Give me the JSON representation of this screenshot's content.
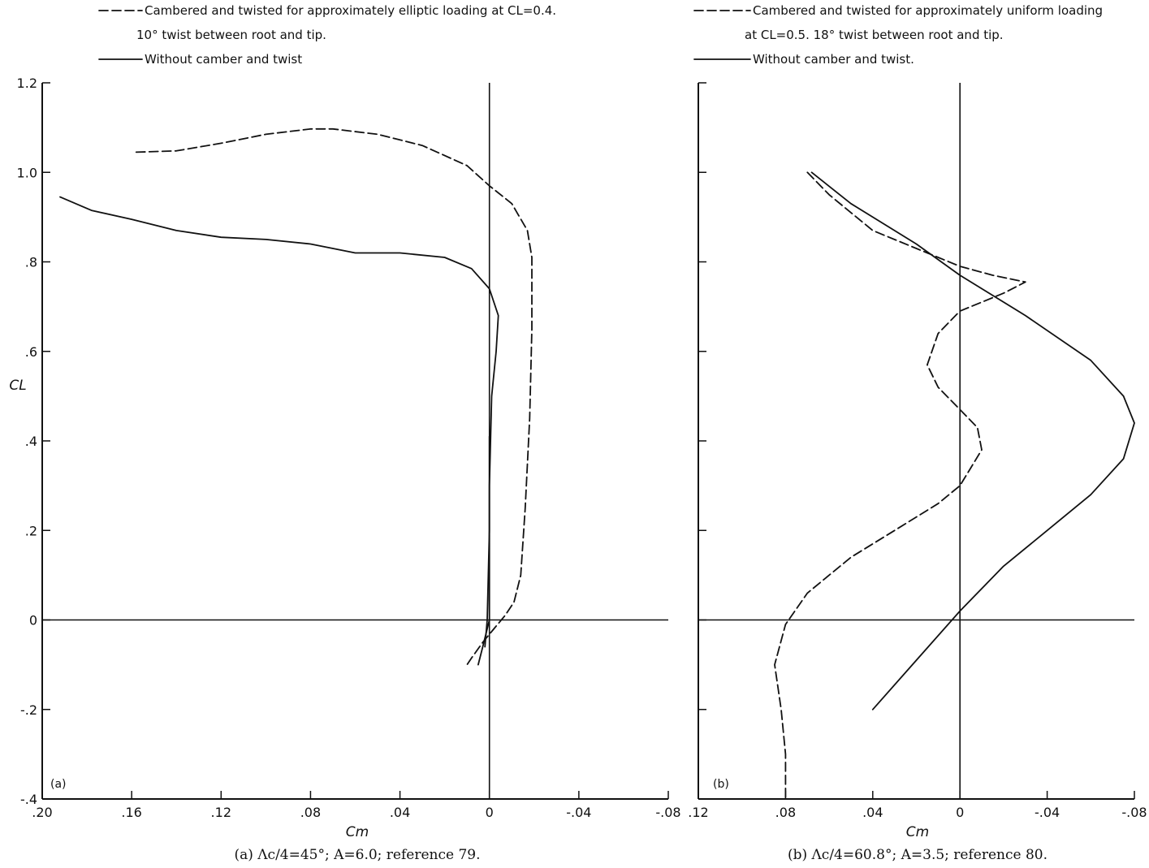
{
  "chart_data": [
    {
      "id": "a",
      "type": "line",
      "panel_tag": "(a)",
      "caption": "(a)  Λc/4=45°; A=6.0; reference 79.",
      "xlabel": "Cm",
      "ylabel": "CL",
      "xlim": [
        0.2,
        -0.08
      ],
      "ylim": [
        -0.4,
        1.2
      ],
      "xticks": [
        0.2,
        0.16,
        0.12,
        0.08,
        0.04,
        0,
        -0.04,
        -0.08
      ],
      "xtick_labels": [
        ".20",
        ".16",
        ".12",
        ".08",
        ".04",
        "0",
        "-.04",
        "-.08"
      ],
      "yticks": [
        -0.4,
        -0.2,
        0,
        0.2,
        0.4,
        0.6,
        0.8,
        1.0,
        1.2
      ],
      "ytick_labels": [
        "-.4",
        "-.2",
        "0",
        ".2",
        ".4",
        ".6",
        ".8",
        "1.0",
        "1.2"
      ],
      "grid": false,
      "legend": {
        "placement": "top",
        "entries": [
          {
            "style": "dashed",
            "lines": [
              "Cambered and twisted for approximately elliptic loading at  CL=0.4.",
              "10° twist between root and tip."
            ]
          },
          {
            "style": "solid",
            "lines": [
              "Without camber and twist"
            ]
          }
        ]
      },
      "series": [
        {
          "style": "dashed",
          "points": [
            [
              0.158,
              1.045
            ],
            [
              0.14,
              1.048
            ],
            [
              0.12,
              1.065
            ],
            [
              0.1,
              1.085
            ],
            [
              0.08,
              1.097
            ],
            [
              0.07,
              1.097
            ],
            [
              0.05,
              1.085
            ],
            [
              0.03,
              1.06
            ],
            [
              0.01,
              1.015
            ],
            [
              0.0,
              0.97
            ],
            [
              -0.01,
              0.93
            ],
            [
              -0.017,
              0.87
            ],
            [
              -0.019,
              0.81
            ],
            [
              -0.019,
              0.65
            ],
            [
              -0.018,
              0.45
            ],
            [
              -0.016,
              0.25
            ],
            [
              -0.014,
              0.1
            ],
            [
              -0.011,
              0.04
            ],
            [
              -0.007,
              0.01
            ],
            [
              -0.002,
              -0.02
            ],
            [
              0.003,
              -0.05
            ],
            [
              0.008,
              -0.085
            ],
            [
              0.01,
              -0.1
            ]
          ]
        },
        {
          "style": "solid",
          "points": [
            [
              0.192,
              0.945
            ],
            [
              0.185,
              0.93
            ],
            [
              0.178,
              0.915
            ],
            [
              0.16,
              0.895
            ],
            [
              0.14,
              0.87
            ],
            [
              0.12,
              0.855
            ],
            [
              0.1,
              0.85
            ],
            [
              0.08,
              0.84
            ],
            [
              0.07,
              0.83
            ],
            [
              0.06,
              0.82
            ],
            [
              0.04,
              0.82
            ],
            [
              0.02,
              0.81
            ],
            [
              0.008,
              0.785
            ],
            [
              0.0,
              0.74
            ],
            [
              -0.004,
              0.68
            ],
            [
              -0.003,
              0.6
            ],
            [
              -0.001,
              0.5
            ],
            [
              0.0,
              0.3
            ],
            [
              0.0,
              0.1
            ],
            [
              0.0,
              0.0
            ],
            [
              0.003,
              -0.06
            ],
            [
              0.005,
              -0.1
            ]
          ]
        },
        {
          "style": "solid",
          "points": [
            [
              0.0,
              0.41
            ],
            [
              0.0,
              0.4
            ],
            [
              0.0,
              0.2
            ],
            [
              0.001,
              0.0
            ],
            [
              0.002,
              -0.06
            ]
          ]
        }
      ]
    },
    {
      "id": "b",
      "type": "line",
      "panel_tag": "(b)",
      "caption": "(b)  Λc/4=60.8°; A=3.5; reference 80.",
      "xlabel": "Cm",
      "ylabel": "",
      "xlim": [
        0.12,
        -0.08
      ],
      "ylim": [
        -0.4,
        1.2
      ],
      "xticks": [
        0.12,
        0.08,
        0.04,
        0,
        -0.04,
        -0.08
      ],
      "xtick_labels": [
        ".12",
        ".08",
        ".04",
        "0",
        "-.04",
        "-.08"
      ],
      "yticks": [
        -0.4,
        -0.2,
        0,
        0.2,
        0.4,
        0.6,
        0.8,
        1.0,
        1.2
      ],
      "ytick_labels": [],
      "grid": false,
      "legend": {
        "placement": "top",
        "entries": [
          {
            "style": "dashed",
            "lines": [
              "Cambered and twisted for approximately uniform loading",
              "at  CL=0.5.  18° twist between root and tip."
            ]
          },
          {
            "style": "solid",
            "lines": [
              "Without camber and twist."
            ]
          }
        ]
      },
      "series": [
        {
          "style": "dashed",
          "points": [
            [
              0.07,
              1.0
            ],
            [
              0.06,
              0.95
            ],
            [
              0.05,
              0.91
            ],
            [
              0.04,
              0.87
            ],
            [
              0.02,
              0.83
            ],
            [
              0.0,
              0.79
            ],
            [
              -0.015,
              0.77
            ],
            [
              -0.03,
              0.755
            ],
            [
              -0.02,
              0.73
            ],
            [
              0.0,
              0.69
            ],
            [
              0.01,
              0.64
            ],
            [
              0.015,
              0.57
            ],
            [
              0.01,
              0.52
            ],
            [
              0.0,
              0.47
            ],
            [
              -0.008,
              0.43
            ],
            [
              -0.01,
              0.38
            ],
            [
              -0.005,
              0.34
            ],
            [
              0.0,
              0.3
            ],
            [
              0.01,
              0.26
            ],
            [
              0.03,
              0.2
            ],
            [
              0.05,
              0.14
            ],
            [
              0.07,
              0.06
            ],
            [
              0.08,
              -0.01
            ],
            [
              0.085,
              -0.1
            ],
            [
              0.082,
              -0.2
            ],
            [
              0.08,
              -0.3
            ],
            [
              0.08,
              -0.4
            ]
          ]
        },
        {
          "style": "solid",
          "points": [
            [
              0.068,
              1.0
            ],
            [
              0.05,
              0.93
            ],
            [
              0.02,
              0.84
            ],
            [
              0.0,
              0.77
            ],
            [
              -0.03,
              0.68
            ],
            [
              -0.06,
              0.58
            ],
            [
              -0.075,
              0.5
            ],
            [
              -0.08,
              0.44
            ],
            [
              -0.075,
              0.36
            ],
            [
              -0.06,
              0.28
            ],
            [
              -0.04,
              0.2
            ],
            [
              -0.02,
              0.12
            ],
            [
              0.0,
              0.02
            ],
            [
              0.02,
              -0.09
            ],
            [
              0.04,
              -0.2
            ]
          ]
        }
      ]
    }
  ]
}
